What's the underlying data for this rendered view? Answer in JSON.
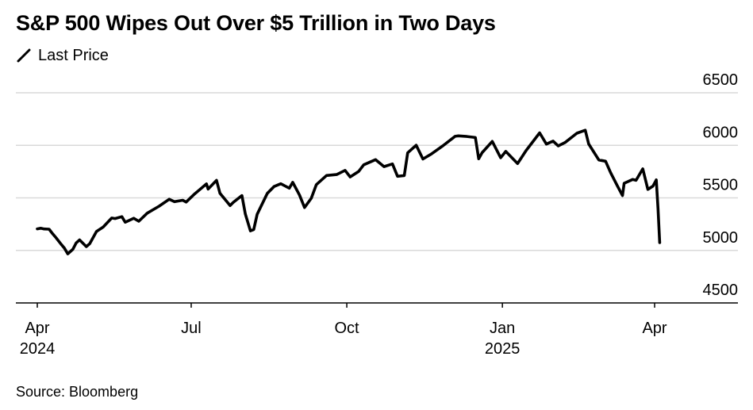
{
  "title": "S&P 500 Wipes Out Over $5 Trillion in Two Days",
  "source": "Source: Bloomberg",
  "colors": {
    "line": "#000000",
    "grid": "#d9d9d9",
    "axis": "#000000",
    "background": "#ffffff"
  },
  "chart_data": {
    "type": "line",
    "title": "S&P 500 Wipes Out Over $5 Trillion in Two Days",
    "xlabel": "",
    "ylabel": "",
    "ylim": [
      4500,
      6500
    ],
    "y_ticks": [
      6500,
      6000,
      5500,
      5000,
      4500
    ],
    "grid": true,
    "legend": {
      "position": "top-left",
      "entries": [
        "Last Price"
      ]
    },
    "x_ticks": [
      {
        "date": "2024-04-01",
        "label": "Apr",
        "year": "2024"
      },
      {
        "date": "2024-07-01",
        "label": "Jul",
        "year": ""
      },
      {
        "date": "2024-10-01",
        "label": "Oct",
        "year": ""
      },
      {
        "date": "2025-01-01",
        "label": "Jan",
        "year": "2025"
      },
      {
        "date": "2025-04-01",
        "label": "Apr",
        "year": ""
      }
    ],
    "series": [
      {
        "name": "Last Price",
        "points": [
          [
            "2024-04-01",
            5205
          ],
          [
            "2024-04-03",
            5211
          ],
          [
            "2024-04-05",
            5204
          ],
          [
            "2024-04-08",
            5202
          ],
          [
            "2024-04-10",
            5160
          ],
          [
            "2024-04-12",
            5123
          ],
          [
            "2024-04-15",
            5061
          ],
          [
            "2024-04-17",
            5022
          ],
          [
            "2024-04-19",
            4967
          ],
          [
            "2024-04-22",
            5010
          ],
          [
            "2024-04-24",
            5071
          ],
          [
            "2024-04-26",
            5100
          ],
          [
            "2024-04-30",
            5036
          ],
          [
            "2024-05-02",
            5064
          ],
          [
            "2024-05-06",
            5180
          ],
          [
            "2024-05-10",
            5223
          ],
          [
            "2024-05-15",
            5308
          ],
          [
            "2024-05-17",
            5303
          ],
          [
            "2024-05-21",
            5321
          ],
          [
            "2024-05-23",
            5268
          ],
          [
            "2024-05-28",
            5306
          ],
          [
            "2024-05-31",
            5277
          ],
          [
            "2024-06-05",
            5354
          ],
          [
            "2024-06-12",
            5421
          ],
          [
            "2024-06-18",
            5487
          ],
          [
            "2024-06-21",
            5464
          ],
          [
            "2024-06-26",
            5477
          ],
          [
            "2024-06-28",
            5460
          ],
          [
            "2024-07-03",
            5537
          ],
          [
            "2024-07-10",
            5633
          ],
          [
            "2024-07-11",
            5584
          ],
          [
            "2024-07-16",
            5667
          ],
          [
            "2024-07-18",
            5544
          ],
          [
            "2024-07-24",
            5427
          ],
          [
            "2024-07-26",
            5459
          ],
          [
            "2024-07-31",
            5522
          ],
          [
            "2024-08-02",
            5346
          ],
          [
            "2024-08-05",
            5186
          ],
          [
            "2024-08-07",
            5199
          ],
          [
            "2024-08-09",
            5344
          ],
          [
            "2024-08-15",
            5543
          ],
          [
            "2024-08-19",
            5608
          ],
          [
            "2024-08-23",
            5634
          ],
          [
            "2024-08-28",
            5592
          ],
          [
            "2024-08-30",
            5648
          ],
          [
            "2024-09-03",
            5528
          ],
          [
            "2024-09-06",
            5408
          ],
          [
            "2024-09-10",
            5496
          ],
          [
            "2024-09-13",
            5626
          ],
          [
            "2024-09-19",
            5713
          ],
          [
            "2024-09-25",
            5722
          ],
          [
            "2024-09-30",
            5762
          ],
          [
            "2024-10-03",
            5699
          ],
          [
            "2024-10-08",
            5751
          ],
          [
            "2024-10-11",
            5815
          ],
          [
            "2024-10-18",
            5864
          ],
          [
            "2024-10-23",
            5797
          ],
          [
            "2024-10-28",
            5823
          ],
          [
            "2024-10-31",
            5705
          ],
          [
            "2024-11-04",
            5712
          ],
          [
            "2024-11-06",
            5929
          ],
          [
            "2024-11-11",
            6001
          ],
          [
            "2024-11-15",
            5870
          ],
          [
            "2024-11-20",
            5917
          ],
          [
            "2024-11-27",
            5998
          ],
          [
            "2024-12-04",
            6086
          ],
          [
            "2024-12-06",
            6090
          ],
          [
            "2024-12-11",
            6084
          ],
          [
            "2024-12-16",
            6074
          ],
          [
            "2024-12-18",
            5872
          ],
          [
            "2024-12-20",
            5930
          ],
          [
            "2024-12-26",
            6037
          ],
          [
            "2024-12-31",
            5882
          ],
          [
            "2025-01-03",
            5942
          ],
          [
            "2025-01-10",
            5827
          ],
          [
            "2025-01-15",
            5950
          ],
          [
            "2025-01-23",
            6119
          ],
          [
            "2025-01-27",
            6012
          ],
          [
            "2025-01-31",
            6040
          ],
          [
            "2025-02-03",
            5994
          ],
          [
            "2025-02-07",
            6026
          ],
          [
            "2025-02-14",
            6115
          ],
          [
            "2025-02-19",
            6144
          ],
          [
            "2025-02-21",
            6013
          ],
          [
            "2025-02-27",
            5861
          ],
          [
            "2025-03-03",
            5849
          ],
          [
            "2025-03-06",
            5739
          ],
          [
            "2025-03-10",
            5614
          ],
          [
            "2025-03-13",
            5522
          ],
          [
            "2025-03-14",
            5639
          ],
          [
            "2025-03-19",
            5675
          ],
          [
            "2025-03-21",
            5667
          ],
          [
            "2025-03-25",
            5776
          ],
          [
            "2025-03-28",
            5581
          ],
          [
            "2025-03-31",
            5612
          ],
          [
            "2025-04-02",
            5671
          ],
          [
            "2025-04-03",
            5397
          ],
          [
            "2025-04-04",
            5074
          ]
        ]
      }
    ]
  }
}
